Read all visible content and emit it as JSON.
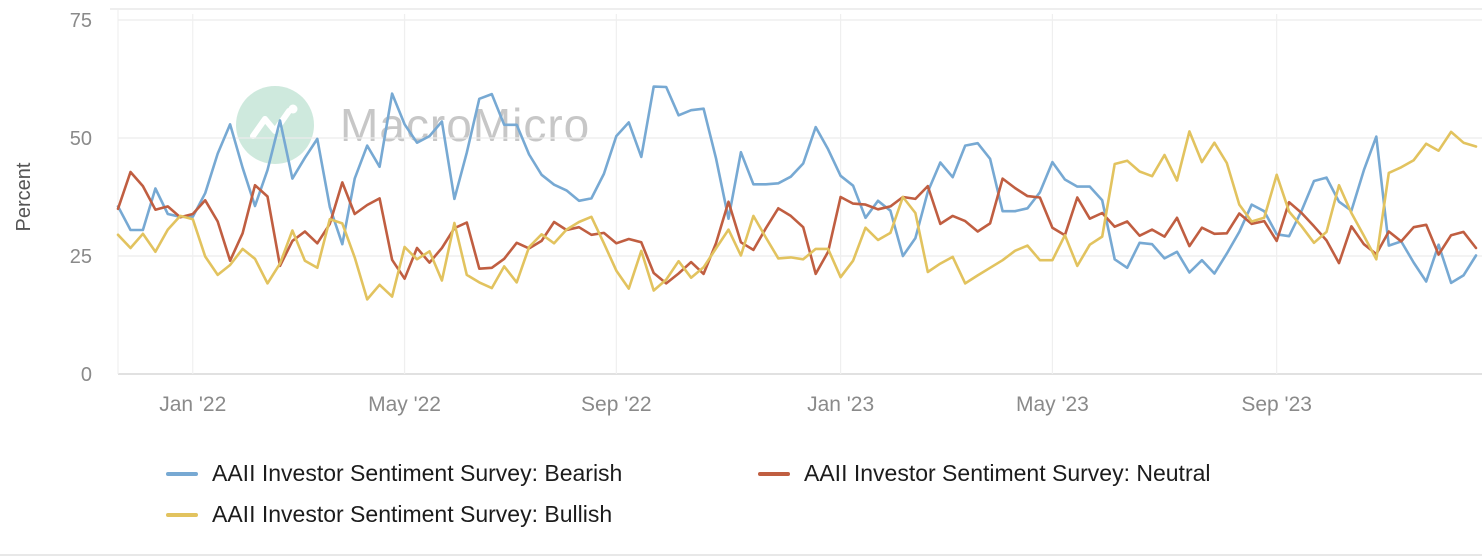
{
  "page": {
    "background": "#ffffff"
  },
  "watermark": {
    "text": "MacroMicro",
    "logo_color": "#c9e7da",
    "text_color": "#c7c7c7"
  },
  "chart_data": {
    "type": "line",
    "title": "",
    "xlabel": "",
    "ylabel": "Percent",
    "ylim": [
      0,
      75
    ],
    "yticks": [
      0,
      25,
      50,
      75
    ],
    "grid": true,
    "legend_position": "bottom",
    "xticks": [
      {
        "label": "Jan '22",
        "index": 6
      },
      {
        "label": "May '22",
        "index": 23
      },
      {
        "label": "Sep '22",
        "index": 40
      },
      {
        "label": "Jan '23",
        "index": 58
      },
      {
        "label": "May '23",
        "index": 75
      },
      {
        "label": "Sep '23",
        "index": 93
      }
    ],
    "x_dates": [
      "2021-11-25",
      "2021-12-02",
      "2021-12-09",
      "2021-12-16",
      "2021-12-23",
      "2021-12-30",
      "2022-01-06",
      "2022-01-13",
      "2022-01-20",
      "2022-01-27",
      "2022-02-03",
      "2022-02-10",
      "2022-02-17",
      "2022-02-24",
      "2022-03-03",
      "2022-03-10",
      "2022-03-17",
      "2022-03-24",
      "2022-03-31",
      "2022-04-07",
      "2022-04-14",
      "2022-04-21",
      "2022-04-28",
      "2022-05-05",
      "2022-05-12",
      "2022-05-19",
      "2022-05-26",
      "2022-06-02",
      "2022-06-09",
      "2022-06-16",
      "2022-06-23",
      "2022-06-30",
      "2022-07-07",
      "2022-07-14",
      "2022-07-21",
      "2022-07-28",
      "2022-08-04",
      "2022-08-11",
      "2022-08-18",
      "2022-08-25",
      "2022-09-01",
      "2022-09-08",
      "2022-09-15",
      "2022-09-22",
      "2022-09-29",
      "2022-10-06",
      "2022-10-13",
      "2022-10-20",
      "2022-10-27",
      "2022-11-03",
      "2022-11-10",
      "2022-11-17",
      "2022-11-24",
      "2022-12-01",
      "2022-12-08",
      "2022-12-15",
      "2022-12-22",
      "2022-12-29",
      "2023-01-05",
      "2023-01-12",
      "2023-01-19",
      "2023-01-26",
      "2023-02-02",
      "2023-02-09",
      "2023-02-16",
      "2023-02-23",
      "2023-03-02",
      "2023-03-09",
      "2023-03-16",
      "2023-03-23",
      "2023-03-30",
      "2023-04-06",
      "2023-04-13",
      "2023-04-20",
      "2023-04-27",
      "2023-05-04",
      "2023-05-11",
      "2023-05-18",
      "2023-05-25",
      "2023-06-01",
      "2023-06-08",
      "2023-06-15",
      "2023-06-22",
      "2023-06-29",
      "2023-07-06",
      "2023-07-13",
      "2023-07-20",
      "2023-07-27",
      "2023-08-03",
      "2023-08-10",
      "2023-08-17",
      "2023-08-24",
      "2023-08-31",
      "2023-09-07",
      "2023-09-14",
      "2023-09-21",
      "2023-09-28",
      "2023-10-05",
      "2023-10-12",
      "2023-10-19",
      "2023-10-26",
      "2023-11-02",
      "2023-11-09",
      "2023-11-16",
      "2023-11-23",
      "2023-11-30",
      "2023-12-07",
      "2023-12-14",
      "2023-12-21",
      "2023-12-28"
    ],
    "series": [
      {
        "name": "AAII Investor Sentiment Survey: Bearish",
        "color": "#77A9D3",
        "values": [
          35.5,
          30.5,
          30.5,
          39.3,
          33.9,
          33.3,
          33.3,
          38.3,
          46.7,
          52.9,
          43.7,
          35.6,
          43.2,
          53.7,
          41.4,
          45.8,
          49.8,
          35.4,
          27.5,
          41.4,
          48.4,
          43.9,
          59.4,
          52.9,
          49.0,
          50.4,
          53.5,
          37.1,
          46.9,
          58.3,
          59.3,
          52.8,
          52.8,
          46.5,
          42.2,
          40.1,
          38.9,
          36.7,
          37.2,
          42.4,
          50.4,
          53.3,
          46.0,
          60.9,
          60.8,
          54.8,
          55.9,
          56.2,
          45.7,
          32.9,
          47.0,
          40.2,
          40.2,
          40.4,
          41.8,
          44.6,
          52.3,
          47.6,
          42.0,
          39.9,
          33.1,
          36.7,
          34.6,
          25.0,
          28.8,
          38.6,
          44.8,
          41.7,
          48.4,
          48.9,
          45.6,
          34.5,
          34.5,
          35.1,
          38.5,
          44.9,
          41.2,
          39.7,
          39.7,
          36.8,
          24.3,
          22.5,
          27.8,
          27.5,
          24.5,
          25.9,
          21.5,
          24.1,
          21.3,
          25.5,
          30.1,
          35.9,
          34.5,
          29.6,
          29.2,
          34.6,
          40.9,
          41.6,
          36.5,
          34.6,
          43.2,
          50.3,
          27.2,
          28.1,
          23.6,
          19.6,
          27.4,
          19.3,
          20.9,
          25.1
        ]
      },
      {
        "name": "AAII Investor Sentiment Survey: Neutral",
        "color": "#C05E41",
        "values": [
          35.0,
          42.8,
          39.8,
          34.8,
          35.5,
          33.2,
          33.9,
          36.8,
          32.3,
          24.0,
          29.8,
          40.0,
          37.6,
          22.9,
          28.2,
          30.2,
          27.7,
          31.8,
          40.6,
          33.9,
          35.8,
          37.2,
          24.2,
          20.2,
          26.7,
          23.6,
          26.7,
          30.9,
          32.1,
          22.3,
          22.5,
          24.4,
          27.8,
          26.6,
          28.2,
          32.2,
          30.5,
          31.1,
          29.5,
          29.9,
          27.7,
          28.6,
          27.9,
          21.4,
          19.2,
          21.3,
          23.7,
          21.2,
          27.7,
          36.5,
          27.9,
          26.3,
          30.9,
          35.1,
          33.5,
          31.1,
          21.2,
          25.9,
          37.5,
          36.1,
          35.9,
          34.9,
          35.5,
          37.5,
          37.1,
          39.8,
          31.8,
          33.5,
          32.4,
          30.2,
          31.9,
          41.4,
          39.4,
          37.7,
          37.4,
          31.0,
          29.4,
          37.4,
          32.9,
          34.1,
          31.2,
          32.3,
          29.3,
          30.6,
          29.1,
          33.1,
          27.1,
          31.0,
          29.7,
          29.8,
          34.0,
          31.8,
          32.4,
          28.2,
          36.4,
          34.1,
          31.3,
          28.3,
          23.5,
          31.3,
          27.5,
          25.4,
          30.2,
          28.1,
          31.1,
          31.6,
          25.3,
          29.4,
          30.1,
          26.7
        ]
      },
      {
        "name": "AAII Investor Sentiment Survey: Bullish",
        "color": "#E2C35F",
        "values": [
          29.5,
          26.7,
          29.7,
          25.9,
          30.6,
          33.5,
          32.8,
          24.9,
          21.0,
          23.1,
          26.5,
          24.4,
          19.2,
          23.4,
          30.4,
          24.0,
          22.5,
          32.8,
          31.9,
          24.7,
          15.8,
          18.9,
          16.4,
          26.9,
          24.3,
          26.0,
          19.8,
          32.0,
          21.0,
          19.4,
          18.2,
          22.8,
          19.4,
          26.9,
          29.6,
          27.7,
          30.6,
          32.2,
          33.3,
          27.7,
          21.9,
          18.1,
          26.1,
          17.7,
          20.0,
          23.9,
          20.4,
          22.6,
          26.6,
          30.6,
          25.1,
          33.5,
          28.9,
          24.5,
          24.7,
          24.3,
          26.5,
          26.5,
          20.5,
          24.0,
          31.0,
          28.4,
          29.9,
          37.5,
          34.1,
          21.6,
          23.4,
          24.8,
          19.2,
          20.9,
          22.5,
          24.1,
          26.1,
          27.2,
          24.1,
          24.1,
          29.4,
          22.9,
          27.4,
          29.1,
          44.5,
          45.2,
          42.9,
          41.9,
          46.4,
          41.0,
          51.4,
          44.9,
          49.0,
          44.7,
          35.9,
          32.3,
          33.1,
          42.2,
          34.4,
          31.3,
          27.8,
          30.1,
          40.0,
          34.1,
          29.3,
          24.3,
          42.6,
          43.8,
          45.3,
          48.8,
          47.3,
          51.3,
          49.0,
          48.2
        ]
      }
    ]
  }
}
